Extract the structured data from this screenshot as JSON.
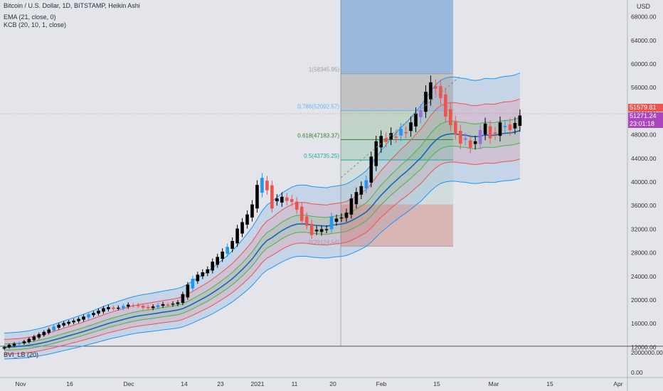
{
  "header": {
    "title": "Bitcoin / U.S. Dollar, 1D, BITSTAMP, Heikin Ashi",
    "indicator_ema": "EMA (21, close, 0)",
    "indicator_kcb": "KCB (20, 10, 1, close)",
    "currency": "USD"
  },
  "lower_pane": {
    "indicator": "BVI_LB (20)",
    "axis_labels": [
      "2000000.00",
      "0.00"
    ]
  },
  "price_tags": {
    "last_price": "51579.81",
    "current_price": "51271.24",
    "countdown": "23:01:18",
    "last_color": "#ef5350",
    "current_color": "#ab47bc"
  },
  "colors": {
    "background": "#e3e5ea",
    "up_candle": "#000000",
    "up_candle_alt": "#2196f3",
    "down_candle": "#ef5350",
    "purple_candle": "#9c6ede",
    "outer_band": "#2196f3",
    "mid_band": "#ef5350",
    "inner_band": "#4caf50",
    "ema": "#1565c0"
  },
  "chart_data": {
    "type": "candlestick",
    "title": "Bitcoin / U.S. Dollar, 1D, BITSTAMP, Heikin Ashi",
    "ylim": [
      10000,
      70000
    ],
    "yticks": [
      12000,
      16000,
      20000,
      24000,
      28000,
      32000,
      36000,
      40000,
      44000,
      48000,
      52000,
      56000,
      60000,
      64000,
      68000
    ],
    "x_tick_labels": [
      "Nov",
      "16",
      "Dec",
      "14",
      "23",
      "2021",
      "11",
      "20",
      "Feb",
      "15",
      "Mar",
      "15",
      "Apr"
    ],
    "series": [
      {
        "name": "EMA (21, close, 0)"
      },
      {
        "name": "KCB (20, 10, 1, close)"
      }
    ],
    "fibonacci": {
      "levels": [
        {
          "ratio": "1",
          "value": "58345.95",
          "label": "1(58345.95)"
        },
        {
          "ratio": "0.786",
          "value": "52092.57",
          "label": "0.786(52092.57)"
        },
        {
          "ratio": "0.618",
          "value": "47183.37",
          "label": "0.618(47183.37)"
        },
        {
          "ratio": "0.5",
          "value": "43735.25",
          "label": "0.5(43735.25)"
        },
        {
          "ratio": "0",
          "value": "29124.54",
          "label": "0(29124.54)"
        }
      ]
    },
    "price_ranges": {
      "first": 29124.54,
      "last": 58345.95
    },
    "closes": [
      12000,
      12400,
      12600,
      12700,
      13000,
      13400,
      13800,
      14200,
      14600,
      15000,
      15500,
      15800,
      16100,
      16300,
      16500,
      16800,
      17200,
      17600,
      17800,
      18200,
      18600,
      18800,
      18500,
      18700,
      19000,
      19200,
      19100,
      19000,
      18700,
      18600,
      18900,
      19100,
      19300,
      19200,
      19400,
      19600,
      21000,
      22600,
      23600,
      24300,
      24700,
      25200,
      26500,
      27300,
      28200,
      29000,
      30000,
      32100,
      33200,
      34500,
      36200,
      39500,
      40700,
      38600,
      35500,
      37200,
      37500,
      36800,
      36600,
      35300,
      33400,
      32600,
      31000,
      31900,
      32000,
      32000,
      34100,
      33800,
      34000,
      34800,
      37200,
      38300,
      39300,
      40300,
      44300,
      46900,
      47800,
      46800,
      48300,
      47600,
      49000,
      48400,
      50100,
      51600,
      52100,
      55300,
      56900,
      55800,
      54200,
      51100,
      49600,
      48100,
      46500,
      47400,
      45800,
      46900,
      48800,
      49900,
      47400,
      48100,
      50100,
      49500,
      48800,
      50000,
      51271
    ]
  }
}
